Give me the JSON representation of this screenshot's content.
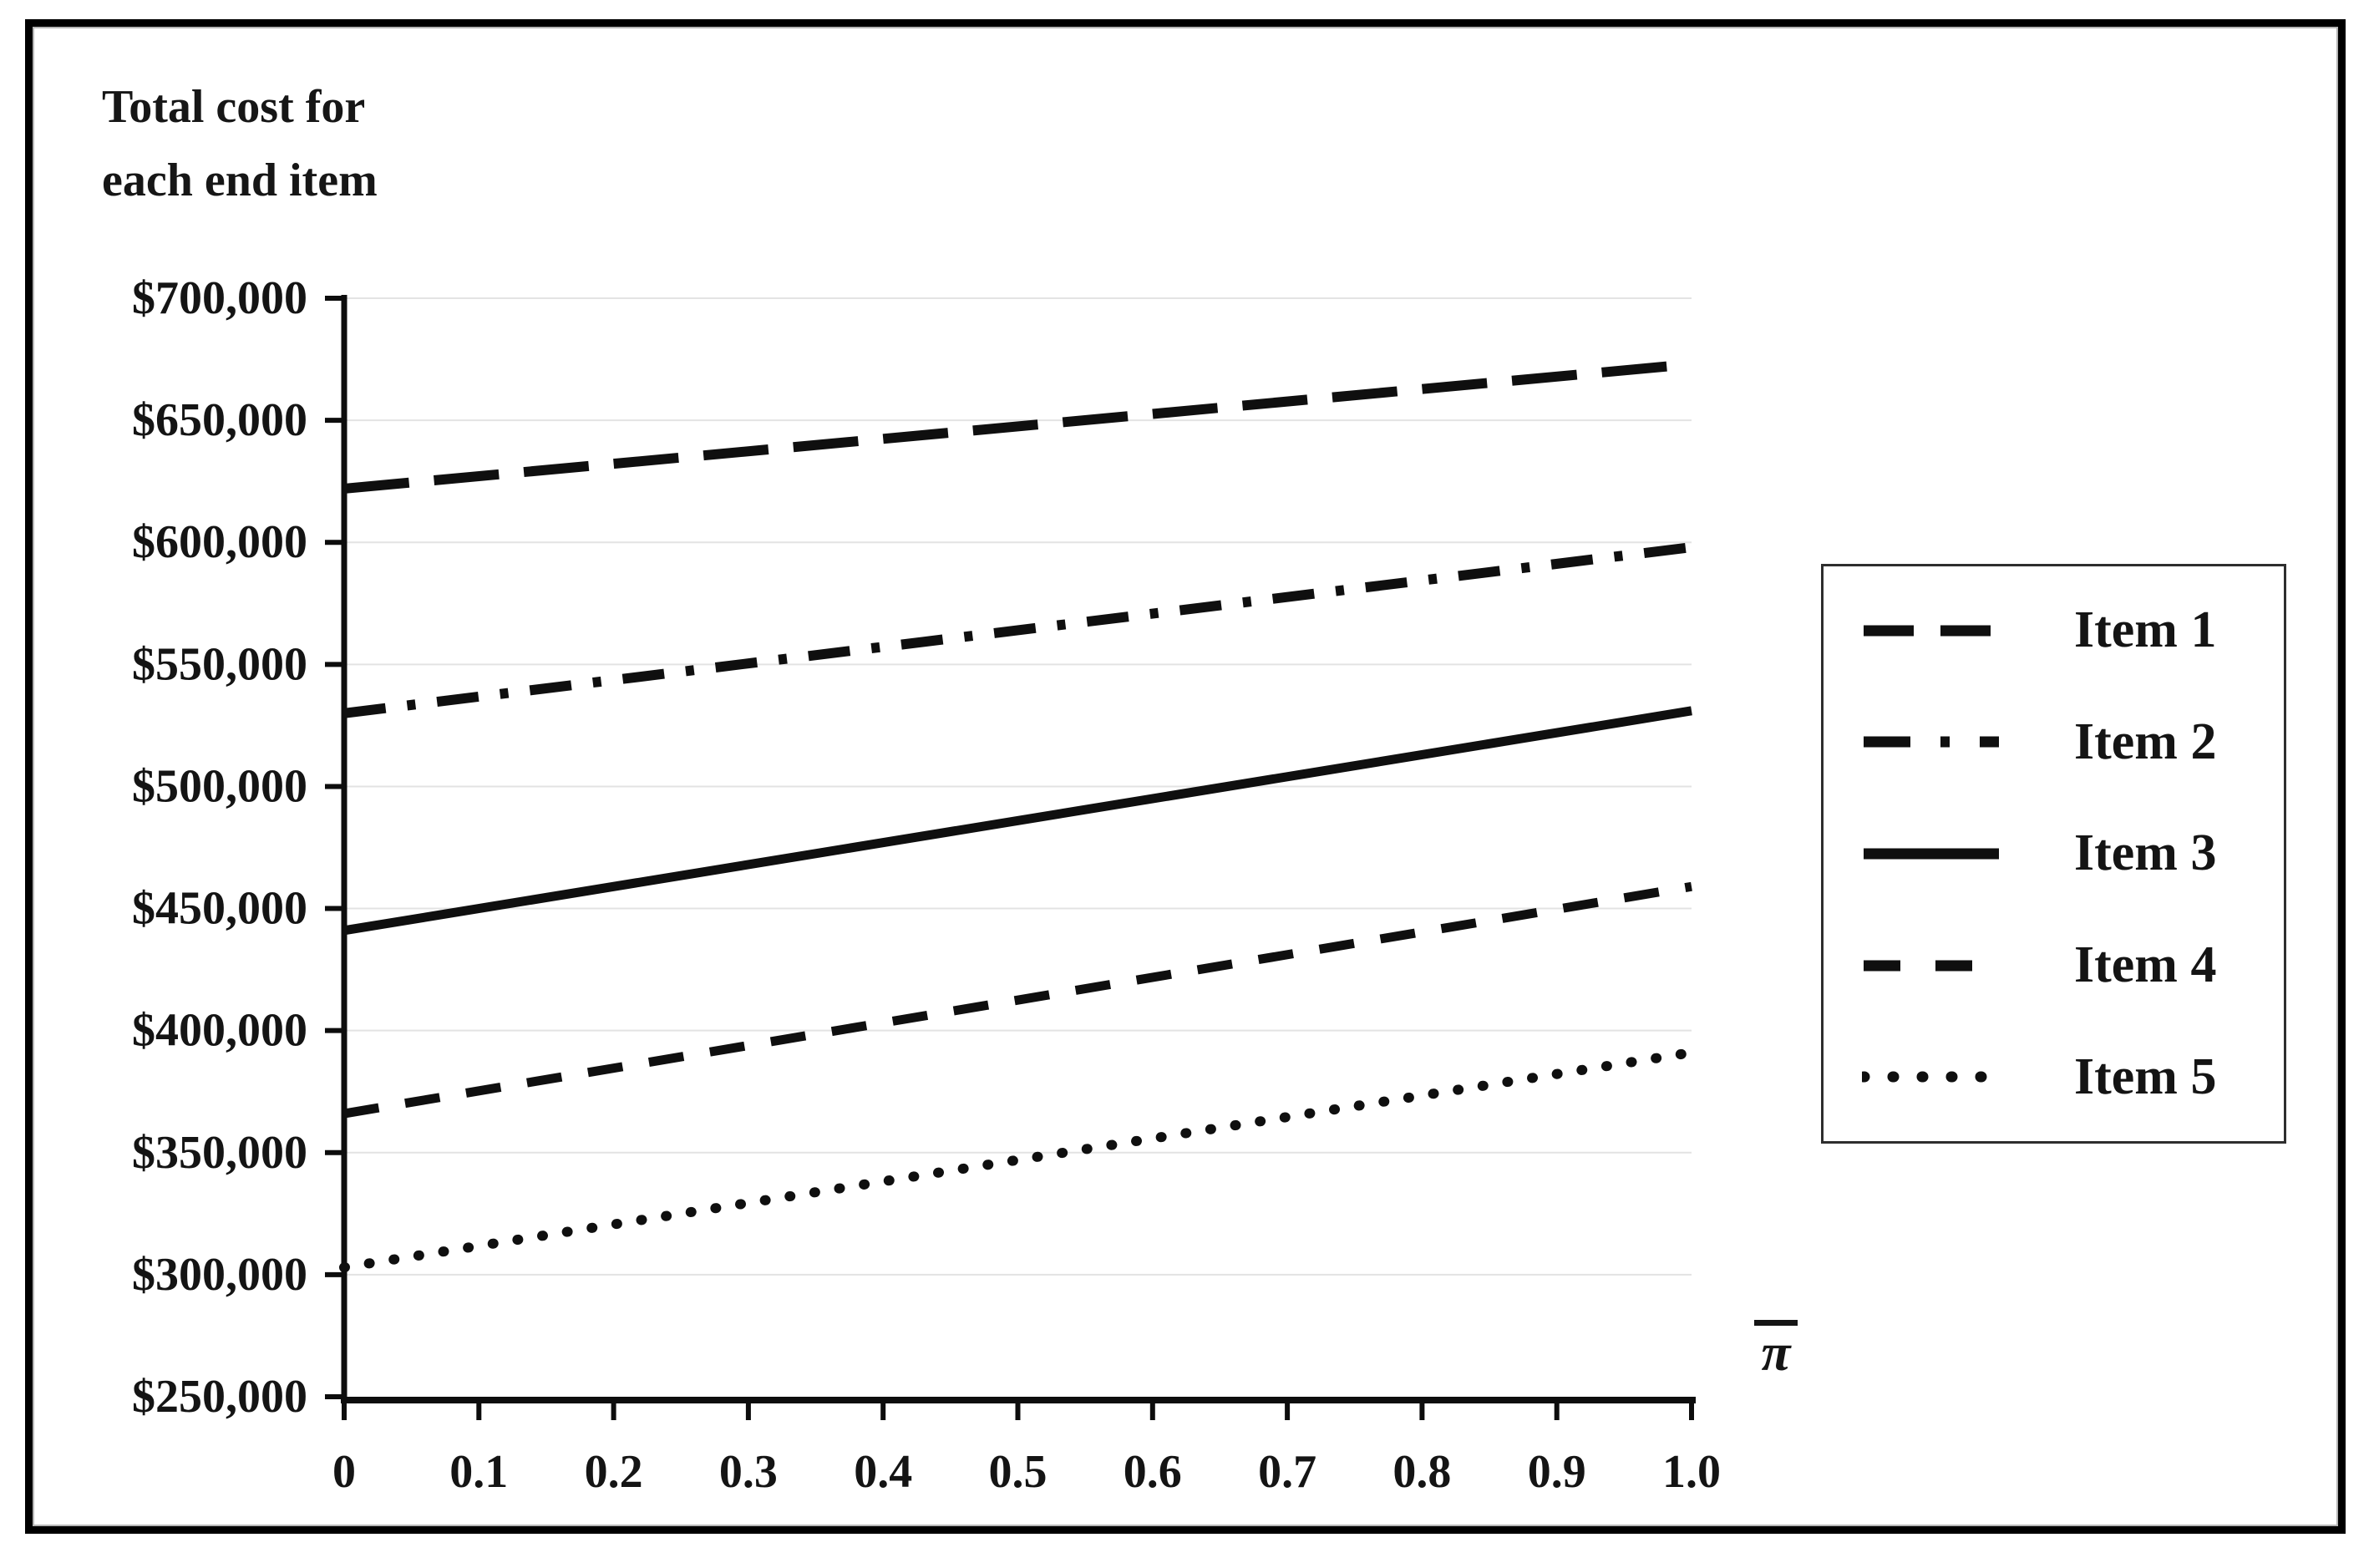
{
  "page": {
    "background": "#ffffff",
    "border_color": "#000000",
    "text_color": "#111111",
    "gridline_color": "#e3e3e3"
  },
  "chart_data": {
    "type": "line",
    "title": [
      "Total cost for",
      "each end item"
    ],
    "xlabel": "π",
    "xlabel_meaning": "pi-bar (x-axis symbol with overline)",
    "ylabel": "Total cost for each end item",
    "xlim": [
      0,
      1.0
    ],
    "ylim": [
      250000,
      700000
    ],
    "grid": "horizontal",
    "legend_position": "right",
    "x_ticks": [
      "0",
      "0.1",
      "0.2",
      "0.3",
      "0.4",
      "0.5",
      "0.6",
      "0.7",
      "0.8",
      "0.9",
      "1.0"
    ],
    "x_tick_values": [
      0,
      0.1,
      0.2,
      0.3,
      0.4,
      0.5,
      0.6,
      0.7,
      0.8,
      0.9,
      1.0
    ],
    "y_ticks": [
      "$700,000",
      "$650,000",
      "$600,000",
      "$550,000",
      "$500,000",
      "$450,000",
      "$400,000",
      "$350,000",
      "$300,000",
      "$250,000"
    ],
    "y_tick_values": [
      700000,
      650000,
      600000,
      550000,
      500000,
      450000,
      400000,
      350000,
      300000,
      250000
    ],
    "series": [
      {
        "name": "Item 1",
        "style": "long-dash",
        "x": [
          0,
          1.0
        ],
        "values": [
          622000,
          673000
        ]
      },
      {
        "name": "Item 2",
        "style": "dash-dot",
        "x": [
          0,
          1.0
        ],
        "values": [
          530000,
          598000
        ]
      },
      {
        "name": "Item 3",
        "style": "solid",
        "x": [
          0,
          1.0
        ],
        "values": [
          441000,
          531000
        ]
      },
      {
        "name": "Item 4",
        "style": "dash",
        "x": [
          0,
          1.0
        ],
        "values": [
          366000,
          459000
        ]
      },
      {
        "name": "Item 5",
        "style": "dotted",
        "x": [
          0,
          1.0
        ],
        "values": [
          303000,
          391000
        ]
      }
    ]
  }
}
